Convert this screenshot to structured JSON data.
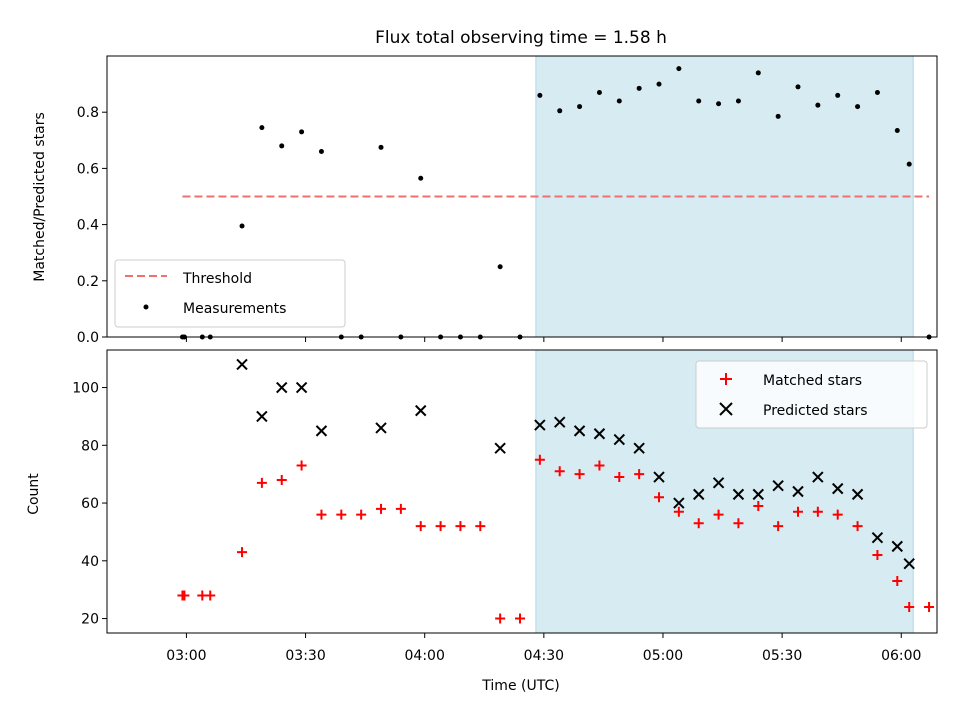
{
  "chart_data": [
    {
      "type": "scatter",
      "title": "Flux total observing time = 1.58 h",
      "ylabel": "Matched/Predicted stars",
      "xlabel": "",
      "ylim": [
        0,
        1.0
      ],
      "yticks": [
        0.0,
        0.2,
        0.4,
        0.6,
        0.8
      ],
      "ytick_labels": [
        "0.0",
        "0.2",
        "0.4",
        "0.6",
        "0.8"
      ],
      "xticks": [
        "03:00",
        "03:30",
        "04:00",
        "04:30",
        "05:00",
        "05:30",
        "06:00"
      ],
      "xlim": [
        "02:40",
        "06:09"
      ],
      "shaded_interval": {
        "start": "04:28",
        "end": "06:03",
        "color": "#add8e6"
      },
      "legend": {
        "position": "lower-left",
        "entries": [
          "Threshold",
          "Measurements"
        ]
      },
      "threshold": {
        "name": "Threshold",
        "value": 0.5,
        "x": [
          "02:59",
          "06:07"
        ],
        "color": "#f07070",
        "style": "dashed"
      },
      "series": [
        {
          "name": "Measurements",
          "marker": "dot",
          "color": "#000000",
          "points": [
            [
              "02:59",
              0.0
            ],
            [
              "02:59.5",
              0.0
            ],
            [
              "03:04",
              0.0
            ],
            [
              "03:06",
              0.0
            ],
            [
              "03:14",
              0.395
            ],
            [
              "03:19",
              0.745
            ],
            [
              "03:24",
              0.68
            ],
            [
              "03:29",
              0.73
            ],
            [
              "03:34",
              0.66
            ],
            [
              "03:39",
              0.0
            ],
            [
              "03:44",
              0.0
            ],
            [
              "03:49",
              0.675
            ],
            [
              "03:54",
              0.0
            ],
            [
              "03:59",
              0.565
            ],
            [
              "04:04",
              0.0
            ],
            [
              "04:09",
              0.0
            ],
            [
              "04:14",
              0.0
            ],
            [
              "04:19",
              0.25
            ],
            [
              "04:24",
              0.0
            ],
            [
              "04:29",
              0.86
            ],
            [
              "04:34",
              0.805
            ],
            [
              "04:39",
              0.82
            ],
            [
              "04:44",
              0.87
            ],
            [
              "04:49",
              0.84
            ],
            [
              "04:54",
              0.885
            ],
            [
              "04:59",
              0.9
            ],
            [
              "05:04",
              0.955
            ],
            [
              "05:09",
              0.84
            ],
            [
              "05:14",
              0.83
            ],
            [
              "05:19",
              0.84
            ],
            [
              "05:24",
              0.94
            ],
            [
              "05:29",
              0.785
            ],
            [
              "05:34",
              0.89
            ],
            [
              "05:39",
              0.825
            ],
            [
              "05:44",
              0.86
            ],
            [
              "05:49",
              0.82
            ],
            [
              "05:54",
              0.87
            ],
            [
              "05:59",
              0.735
            ],
            [
              "06:02",
              0.615
            ],
            [
              "06:07",
              0.0
            ]
          ]
        }
      ]
    },
    {
      "type": "scatter",
      "title": "",
      "ylabel": "Count",
      "xlabel": "Time (UTC)",
      "ylim": [
        15,
        113
      ],
      "yticks": [
        20,
        40,
        60,
        80,
        100
      ],
      "ytick_labels": [
        "20",
        "40",
        "60",
        "80",
        "100"
      ],
      "xticks": [
        "03:00",
        "03:30",
        "04:00",
        "04:30",
        "05:00",
        "05:30",
        "06:00"
      ],
      "xlim": [
        "02:40",
        "06:09"
      ],
      "shaded_interval": {
        "start": "04:28",
        "end": "06:03",
        "color": "#add8e6"
      },
      "legend": {
        "position": "top-right",
        "entries": [
          "Matched stars",
          "Predicted stars"
        ]
      },
      "series": [
        {
          "name": "Matched stars",
          "marker": "plus",
          "color": "#ff0000",
          "points": [
            [
              "02:59",
              28
            ],
            [
              "02:59.5",
              28
            ],
            [
              "03:04",
              28
            ],
            [
              "03:06",
              28
            ],
            [
              "03:14",
              43
            ],
            [
              "03:19",
              67
            ],
            [
              "03:24",
              68
            ],
            [
              "03:29",
              73
            ],
            [
              "03:34",
              56
            ],
            [
              "03:39",
              56
            ],
            [
              "03:44",
              56
            ],
            [
              "03:49",
              58
            ],
            [
              "03:54",
              58
            ],
            [
              "03:59",
              52
            ],
            [
              "04:04",
              52
            ],
            [
              "04:09",
              52
            ],
            [
              "04:14",
              52
            ],
            [
              "04:19",
              20
            ],
            [
              "04:24",
              20
            ],
            [
              "04:29",
              75
            ],
            [
              "04:34",
              71
            ],
            [
              "04:39",
              70
            ],
            [
              "04:44",
              73
            ],
            [
              "04:49",
              69
            ],
            [
              "04:54",
              70
            ],
            [
              "04:59",
              62
            ],
            [
              "05:04",
              57
            ],
            [
              "05:09",
              53
            ],
            [
              "05:14",
              56
            ],
            [
              "05:19",
              53
            ],
            [
              "05:24",
              59
            ],
            [
              "05:29",
              52
            ],
            [
              "05:34",
              57
            ],
            [
              "05:39",
              57
            ],
            [
              "05:44",
              56
            ],
            [
              "05:49",
              52
            ],
            [
              "05:54",
              42
            ],
            [
              "05:59",
              33
            ],
            [
              "06:02",
              24
            ],
            [
              "06:07",
              24
            ]
          ]
        },
        {
          "name": "Predicted stars",
          "marker": "x",
          "color": "#000000",
          "points": [
            [
              "03:14",
              108
            ],
            [
              "03:19",
              90
            ],
            [
              "03:24",
              100
            ],
            [
              "03:29",
              100
            ],
            [
              "03:34",
              85
            ],
            [
              "03:49",
              86
            ],
            [
              "03:59",
              92
            ],
            [
              "04:19",
              79
            ],
            [
              "04:29",
              87
            ],
            [
              "04:34",
              88
            ],
            [
              "04:39",
              85
            ],
            [
              "04:44",
              84
            ],
            [
              "04:49",
              82
            ],
            [
              "04:54",
              79
            ],
            [
              "04:59",
              69
            ],
            [
              "05:04",
              60
            ],
            [
              "05:09",
              63
            ],
            [
              "05:14",
              67
            ],
            [
              "05:19",
              63
            ],
            [
              "05:24",
              63
            ],
            [
              "05:29",
              66
            ],
            [
              "05:34",
              64
            ],
            [
              "05:39",
              69
            ],
            [
              "05:44",
              65
            ],
            [
              "05:49",
              63
            ],
            [
              "05:54",
              48
            ],
            [
              "05:59",
              45
            ],
            [
              "06:02",
              39
            ]
          ]
        }
      ]
    }
  ]
}
